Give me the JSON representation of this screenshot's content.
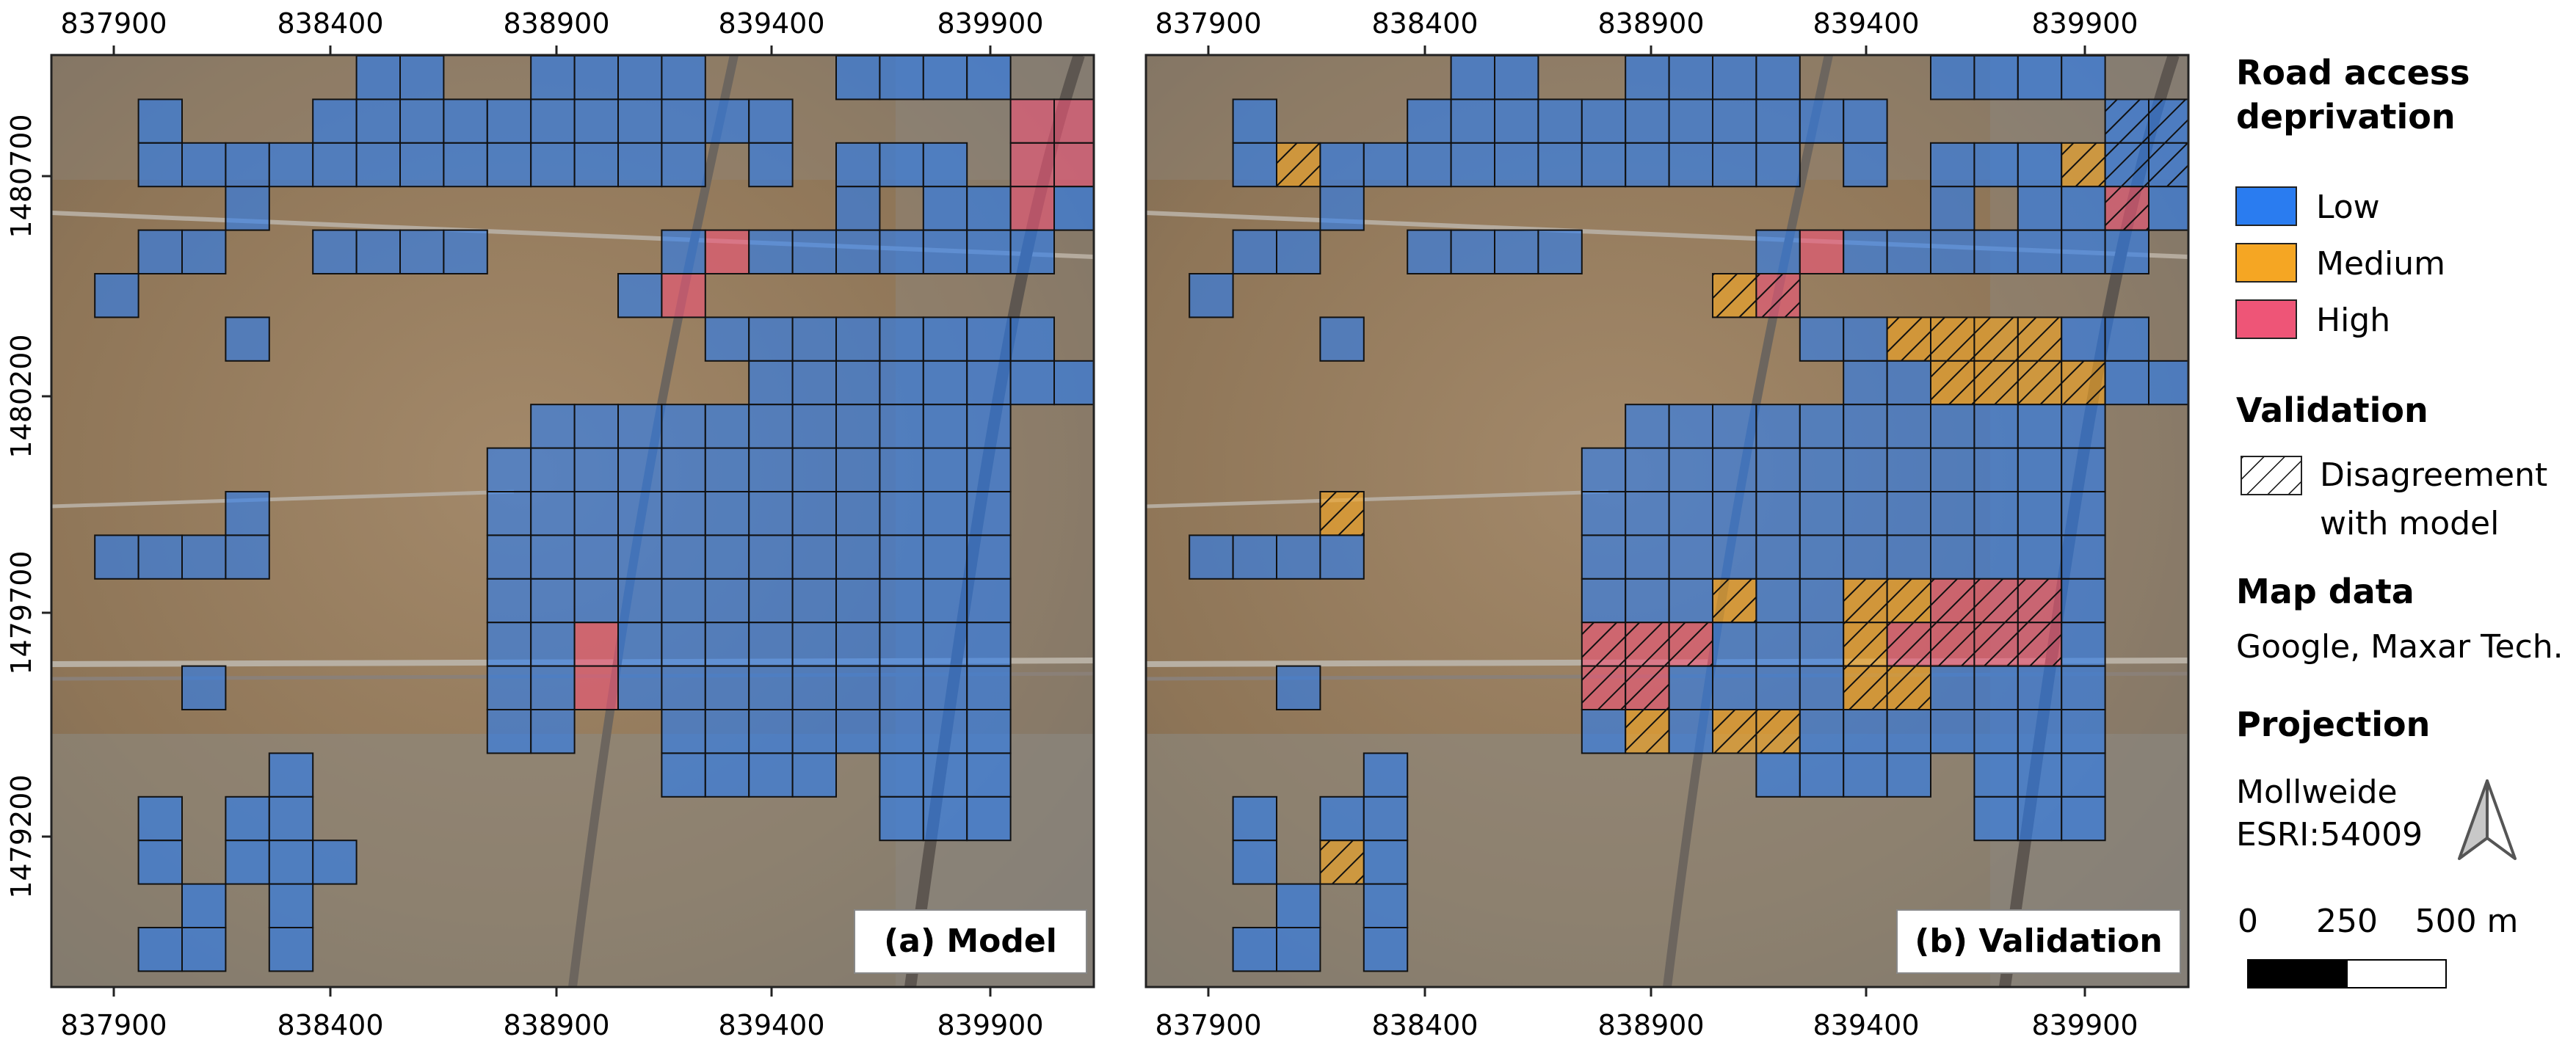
{
  "axes": {
    "x_ticks": [
      "837900",
      "838400",
      "838900",
      "839400",
      "839900"
    ],
    "y_ticks": [
      "1480700",
      "1480200",
      "1479700",
      "1479200"
    ]
  },
  "panels": [
    {
      "label": "(a) Model"
    },
    {
      "label": "(b) Validation"
    }
  ],
  "legend": {
    "deprivation_title_line1": "Road access",
    "deprivation_title_line2": "deprivation",
    "classes": [
      {
        "label": "Low",
        "color": "#2a7cf0"
      },
      {
        "label": "Medium",
        "color": "#f5a623"
      },
      {
        "label": "High",
        "color": "#ee5577"
      }
    ],
    "validation_title": "Validation",
    "validation_item_line1": "Disagreement",
    "validation_item_line2": "with model",
    "map_data_title": "Map data",
    "map_data_value": "Google, Maxar Tech.",
    "projection_title": "Projection",
    "projection_line1": "Mollweide",
    "projection_line2": "ESRI:54009",
    "scale_labels": [
      "0",
      "250",
      "500 m"
    ]
  }
}
